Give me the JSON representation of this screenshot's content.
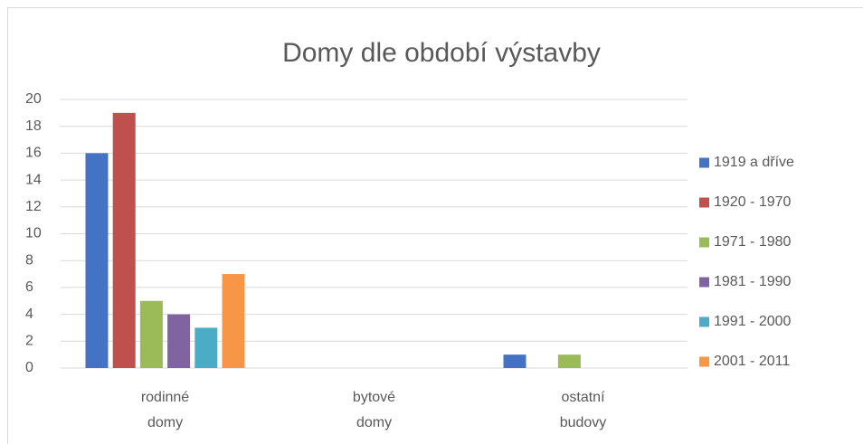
{
  "chart_data": {
    "type": "bar",
    "title": "Domy dle období výstavby",
    "categories": [
      "rodinné domy",
      "bytové domy",
      "ostatní budovy"
    ],
    "series": [
      {
        "name": "1919 a dříve",
        "color": "#4472c4",
        "values": [
          16,
          0,
          1
        ]
      },
      {
        "name": "1920 - 1970",
        "color": "#c0504d",
        "values": [
          19,
          0,
          0
        ]
      },
      {
        "name": "1971 - 1980",
        "color": "#9bbb59",
        "values": [
          5,
          0,
          1
        ]
      },
      {
        "name": "1981 - 1990",
        "color": "#8064a2",
        "values": [
          4,
          0,
          0
        ]
      },
      {
        "name": "1991 - 2000",
        "color": "#4bacc6",
        "values": [
          3,
          0,
          0
        ]
      },
      {
        "name": "2001 - 2011",
        "color": "#f79646",
        "values": [
          7,
          0,
          0
        ]
      }
    ],
    "ylim": [
      0,
      20
    ],
    "yticks": [
      0,
      2,
      4,
      6,
      8,
      10,
      12,
      14,
      16,
      18,
      20
    ],
    "grid": true,
    "legend": "right"
  }
}
